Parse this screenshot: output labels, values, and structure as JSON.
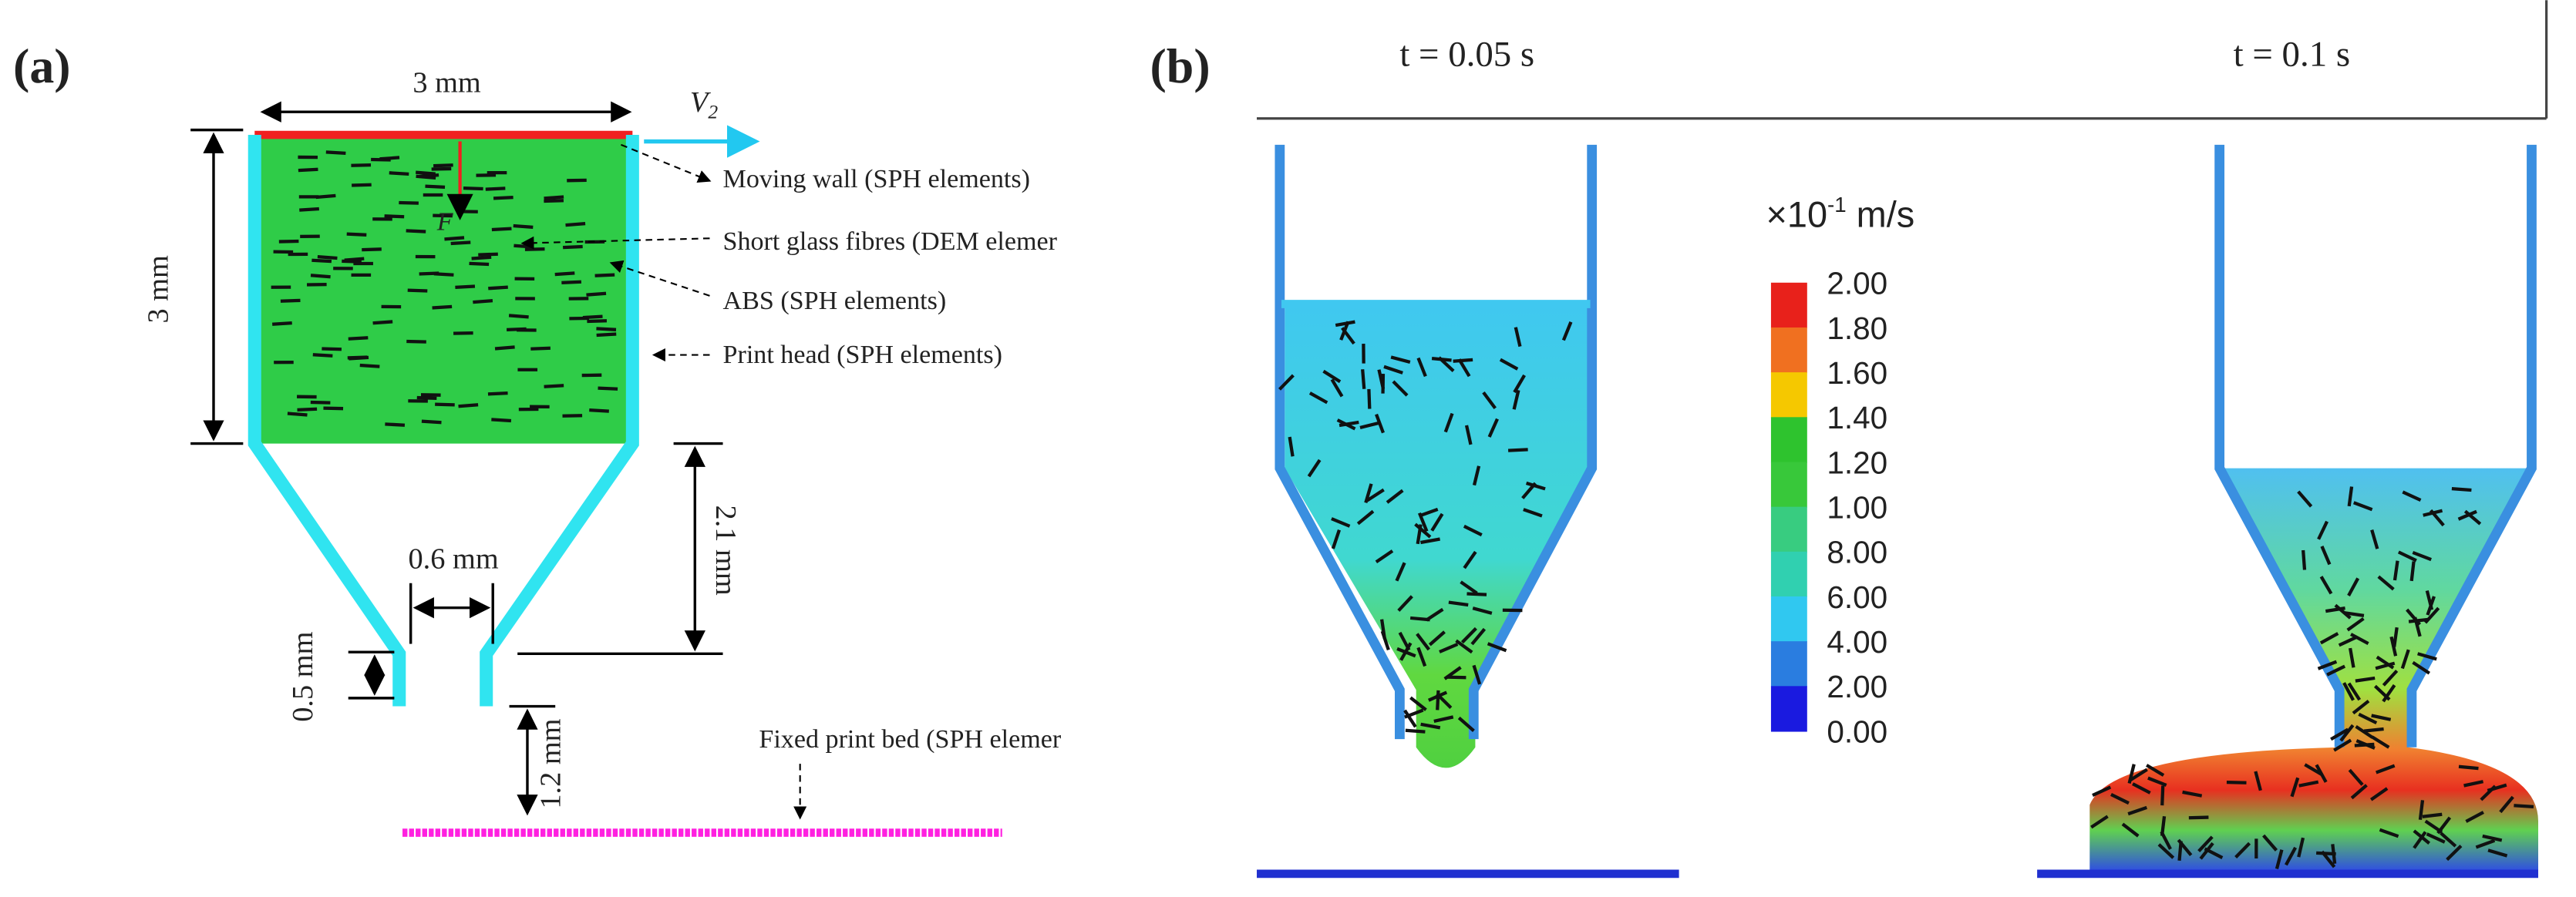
{
  "panel_a": {
    "label": "(a)",
    "width_dim": "3 mm",
    "height_dim": "3 mm",
    "velocity_symbol": "V",
    "velocity_subscript": "2",
    "force_symbol": "F",
    "annotations": [
      "Moving wall (SPH elements)",
      "Short glass fibres (DEM elemer",
      "ABS (SPH elements)",
      "Print head (SPH elements)",
      "Fixed print bed (SPH elemer"
    ],
    "nozzle_height_dim": "2.1 mm",
    "nozzle_width_dim": "0.6 mm",
    "nozzle_length_dim": "0.5 mm",
    "gap_dim": "1.2 mm"
  },
  "panel_b": {
    "label": "(b)",
    "times": [
      "t = 0.05 s",
      "t = 0.1 s"
    ],
    "unit": {
      "prefix": "×10",
      "exponent": "-1",
      "suffix": " m/s"
    },
    "colorbar_labels": [
      "2.00",
      "1.80",
      "1.60",
      "1.40",
      "1.20",
      "1.00",
      "8.00",
      "6.00",
      "4.00",
      "2.00",
      "0.00"
    ]
  }
}
